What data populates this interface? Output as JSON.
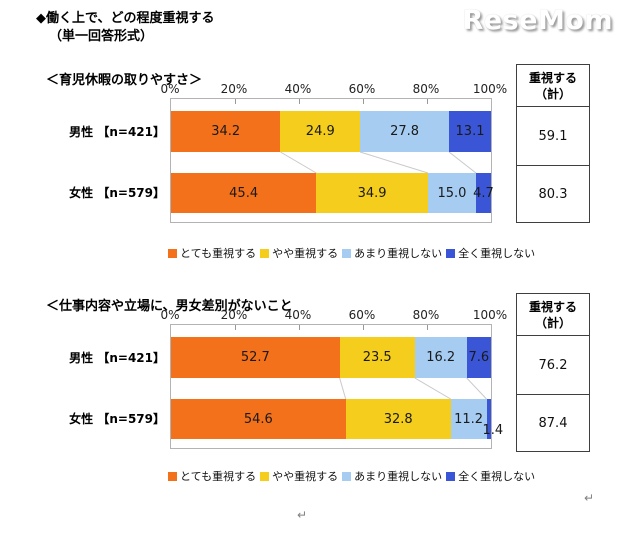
{
  "header": {
    "title_line1": "◆働く上で、どの程度重視する",
    "title_line2": "（単一回答形式）",
    "logo": "ReseMom"
  },
  "chart_data": [
    {
      "type": "bar",
      "stacked": true,
      "orientation": "horizontal",
      "title": "＜育児休暇の取りやすさ＞",
      "categories": [
        "男性 【n=421】",
        "女性 【n=579】"
      ],
      "series": [
        {
          "name": "とても重視する",
          "color": "#f4711c",
          "values": [
            34.2,
            45.4
          ]
        },
        {
          "name": "やや重視する",
          "color": "#f5ce1d",
          "values": [
            24.9,
            34.9
          ]
        },
        {
          "name": "あまり重視しない",
          "color": "#a6ccf2",
          "values": [
            27.8,
            15.0
          ]
        },
        {
          "name": "全く重視しない",
          "color": "#3a56d6",
          "values": [
            13.1,
            4.7
          ]
        }
      ],
      "value_labels": [
        [
          "34.2",
          "24.9",
          "27.8",
          "13.1"
        ],
        [
          "45.4",
          "34.9",
          "15.0",
          "4.7"
        ]
      ],
      "xlim": [
        0,
        100
      ],
      "x_ticks": [
        "0%",
        "20%",
        "40%",
        "60%",
        "80%",
        "100%"
      ],
      "legend_position": "bottom",
      "summary_column": {
        "header_line1": "重視する",
        "header_line2": "（計）",
        "values": [
          "59.1",
          "80.3"
        ]
      }
    },
    {
      "type": "bar",
      "stacked": true,
      "orientation": "horizontal",
      "title": "＜仕事内容や立場に、男女差別がないこと",
      "categories": [
        "男性 【n=421】",
        "女性 【n=579】"
      ],
      "series": [
        {
          "name": "とても重視する",
          "color": "#f4711c",
          "values": [
            52.7,
            54.6
          ]
        },
        {
          "name": "やや重視する",
          "color": "#f5ce1d",
          "values": [
            23.5,
            32.8
          ]
        },
        {
          "name": "あまり重視しない",
          "color": "#a6ccf2",
          "values": [
            16.2,
            11.2
          ]
        },
        {
          "name": "全く重視しない",
          "color": "#3a56d6",
          "values": [
            7.6,
            1.4
          ]
        }
      ],
      "value_labels": [
        [
          "52.7",
          "23.5",
          "16.2",
          "7.6"
        ],
        [
          "54.6",
          "32.8",
          "11.2",
          "1.4"
        ]
      ],
      "xlim": [
        0,
        100
      ],
      "x_ticks": [
        "0%",
        "20%",
        "40%",
        "60%",
        "80%",
        "100%"
      ],
      "legend_position": "bottom",
      "summary_column": {
        "header_line1": "重視する",
        "header_line2": "（計）",
        "values": [
          "76.2",
          "87.4"
        ]
      }
    }
  ],
  "footer": {
    "return_mark": "↵"
  }
}
